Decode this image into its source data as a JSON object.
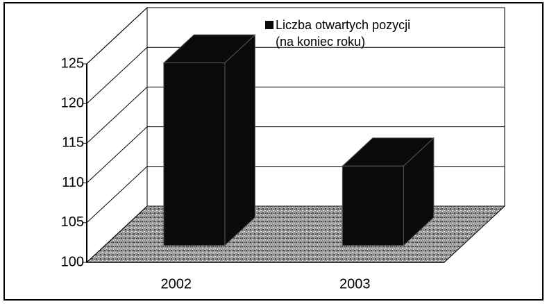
{
  "chart_data": {
    "type": "bar3d",
    "categories": [
      "2002",
      "2003"
    ],
    "series": [
      {
        "name": "Liczba otwartych pozycji (na koniec roku)",
        "color": "#0a0a0a",
        "values": [
          123,
          110
        ]
      }
    ],
    "ylim": [
      100,
      125
    ],
    "yticks": [
      100,
      105,
      110,
      115,
      120,
      125
    ],
    "grid": true,
    "legend": "top"
  }
}
